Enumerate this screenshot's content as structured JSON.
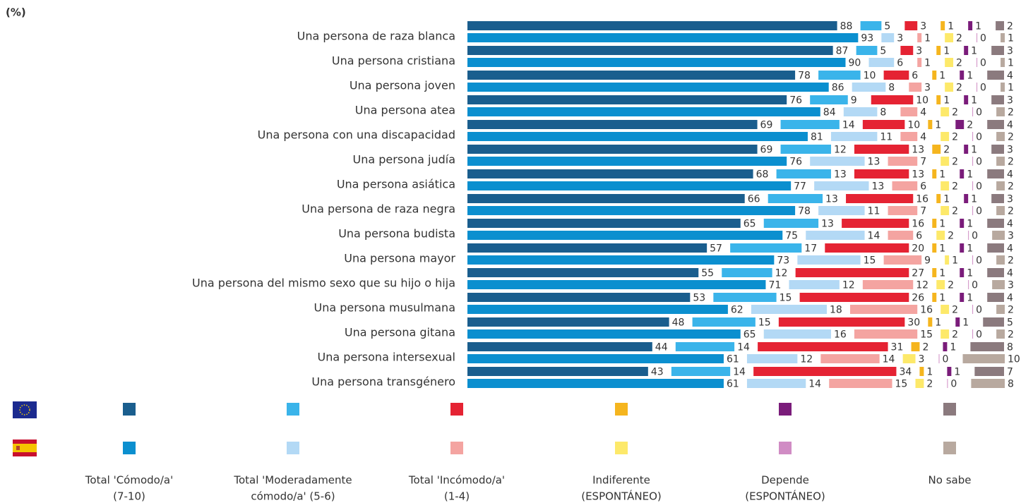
{
  "chart_data": {
    "type": "paired-stacked-bar",
    "title": "(%)",
    "categories": [
      "Una persona de raza blanca",
      "Una persona cristiana",
      "Una persona joven",
      "Una persona atea",
      "Una persona con una discapacidad",
      "Una persona judía",
      "Una persona asiática",
      "Una persona de raza negra",
      "Una persona budista",
      "Una persona mayor",
      "Una persona del mismo sexo que su hijo o hija",
      "Una persona musulmana",
      "Una persona gitana",
      "Una persona intersexual",
      "Una persona transgénero"
    ],
    "series": [
      {
        "name": [
          "Total 'Cómodo/a'",
          "(7-10)"
        ],
        "eu": {
          "color": "#1a5e8e",
          "values": [
            88,
            87,
            78,
            76,
            69,
            69,
            68,
            66,
            65,
            57,
            55,
            53,
            48,
            44,
            43
          ]
        },
        "es": {
          "color": "#0b8fcf",
          "values": [
            93,
            90,
            86,
            84,
            81,
            76,
            77,
            78,
            75,
            73,
            71,
            62,
            65,
            61,
            61
          ]
        }
      },
      {
        "name": [
          "Total 'Moderadamente",
          "cómodo/a' (5-6)"
        ],
        "eu": {
          "color": "#3ab4ea",
          "values": [
            5,
            5,
            10,
            9,
            14,
            12,
            13,
            13,
            13,
            17,
            12,
            15,
            15,
            14,
            14
          ]
        },
        "es": {
          "color": "#b3d9f5",
          "values": [
            3,
            6,
            8,
            8,
            11,
            13,
            13,
            11,
            14,
            15,
            12,
            18,
            16,
            12,
            14
          ]
        }
      },
      {
        "name": [
          "Total 'Incómodo/a'",
          "(1-4)"
        ],
        "eu": {
          "color": "#e52333",
          "values": [
            3,
            3,
            6,
            10,
            10,
            13,
            13,
            16,
            16,
            20,
            27,
            26,
            30,
            31,
            34
          ]
        },
        "es": {
          "color": "#f4a4a1",
          "values": [
            1,
            1,
            3,
            4,
            4,
            7,
            6,
            7,
            6,
            9,
            12,
            16,
            15,
            14,
            15
          ]
        }
      },
      {
        "name": [
          "Indiferente",
          "(ESPONTÁNEO)"
        ],
        "eu": {
          "color": "#f5b51e",
          "values": [
            1,
            1,
            1,
            1,
            1,
            2,
            1,
            1,
            1,
            1,
            1,
            1,
            1,
            2,
            1
          ]
        },
        "es": {
          "color": "#fde96a",
          "values": [
            2,
            2,
            2,
            2,
            2,
            2,
            2,
            2,
            2,
            1,
            2,
            2,
            2,
            3,
            2
          ]
        }
      },
      {
        "name": [
          "Depende",
          "(ESPONTÁNEO)"
        ],
        "eu": {
          "color": "#7a1c7a",
          "values": [
            1,
            1,
            1,
            1,
            2,
            1,
            1,
            1,
            1,
            1,
            1,
            1,
            1,
            1,
            1
          ]
        },
        "es": {
          "color": "#d08cc4",
          "values": [
            0,
            0,
            0,
            0,
            0,
            0,
            0,
            0,
            0,
            0,
            0,
            0,
            0,
            0,
            0
          ]
        }
      },
      {
        "name": [
          "No sabe"
        ],
        "eu": {
          "color": "#8b7a7e",
          "values": [
            2,
            3,
            4,
            3,
            4,
            3,
            4,
            3,
            4,
            4,
            4,
            4,
            5,
            8,
            7
          ]
        },
        "es": {
          "color": "#b8a99f",
          "values": [
            1,
            1,
            1,
            2,
            2,
            2,
            2,
            2,
            3,
            2,
            3,
            2,
            2,
            10,
            8
          ]
        }
      }
    ]
  }
}
